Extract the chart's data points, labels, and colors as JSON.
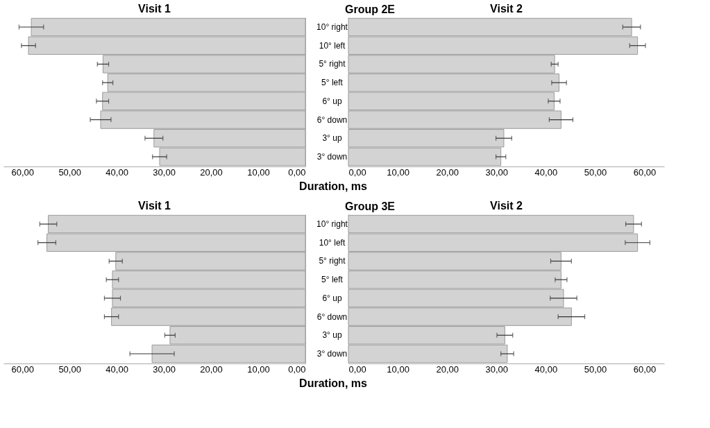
{
  "chart_data": [
    {
      "type": "bar",
      "orientation": "horizontal",
      "title": "Visit 1",
      "annotations": [
        "Group 2E"
      ],
      "xlabel": "Duration, ms",
      "color": "#d3d3d3",
      "categories": [
        "10° right",
        "10° left",
        "5° right",
        "5° left",
        "6° up",
        "6° down",
        "3° up",
        "3° down"
      ],
      "values": [
        58.1,
        58.7,
        42.9,
        41.9,
        43.0,
        43.4,
        32.1,
        30.9
      ],
      "errors": [
        2.6,
        1.5,
        1.2,
        1.1,
        1.3,
        2.2,
        1.9,
        1.5
      ],
      "xlim": [
        64,
        0
      ],
      "xticks": [
        {
          "value": 60,
          "label": "60,00"
        },
        {
          "value": 50,
          "label": "50,00"
        },
        {
          "value": 40,
          "label": "40,00"
        },
        {
          "value": 30,
          "label": "30,00"
        },
        {
          "value": 20,
          "label": "20,00"
        },
        {
          "value": 10,
          "label": "10,00"
        },
        {
          "value": 0,
          "label": "0,00"
        }
      ]
    },
    {
      "type": "bar",
      "orientation": "horizontal",
      "title": "Visit 2",
      "color": "#d3d3d3",
      "tick_labels": "x",
      "categories": [
        "10° right",
        "10° left",
        "5° right",
        "5° left",
        "6° up",
        "6° down",
        "3° up",
        "3° down"
      ],
      "values": [
        57.4,
        58.6,
        41.8,
        42.7,
        41.7,
        43.1,
        31.5,
        30.9
      ],
      "errors": [
        1.8,
        1.6,
        0.7,
        1.5,
        1.2,
        2.4,
        1.6,
        1.0
      ],
      "xlim": [
        0,
        64
      ],
      "xticks": [
        {
          "value": 0,
          "label": "0,00"
        },
        {
          "value": 10,
          "label": "10,00"
        },
        {
          "value": 20,
          "label": "20,00"
        },
        {
          "value": 30,
          "label": "30,00"
        },
        {
          "value": 40,
          "label": "40,00"
        },
        {
          "value": 50,
          "label": "50,00"
        },
        {
          "value": 60,
          "label": "60,00"
        }
      ]
    },
    {
      "type": "bar",
      "orientation": "horizontal",
      "title": "Visit 1",
      "annotations": [
        "Group 3E"
      ],
      "xlabel": "Duration, ms",
      "color": "#d3d3d3",
      "categories": [
        "10° right",
        "10° left",
        "5° right",
        "5° left",
        "6° up",
        "6° down",
        "3° up",
        "3° down"
      ],
      "values": [
        54.5,
        54.8,
        40.2,
        40.9,
        40.9,
        41.1,
        28.7,
        32.5
      ],
      "errors": [
        1.8,
        1.9,
        1.4,
        1.3,
        1.7,
        1.5,
        1.1,
        4.7
      ],
      "xlim": [
        64,
        0
      ],
      "xticks": [
        {
          "value": 60,
          "label": "60,00"
        },
        {
          "value": 50,
          "label": "50,00"
        },
        {
          "value": 40,
          "label": "40,00"
        },
        {
          "value": 30,
          "label": "30,00"
        },
        {
          "value": 20,
          "label": "20,00"
        },
        {
          "value": 10,
          "label": "10,00"
        },
        {
          "value": 0,
          "label": "0,00"
        }
      ]
    },
    {
      "type": "bar",
      "orientation": "horizontal",
      "title": "Visit 2",
      "color": "#d3d3d3",
      "tick_labels": "x",
      "categories": [
        "10° right",
        "10° left",
        "5° right",
        "5° left",
        "6° up",
        "6° down",
        "3° up",
        "3° down"
      ],
      "values": [
        57.8,
        58.6,
        43.1,
        43.1,
        43.6,
        45.2,
        31.7,
        32.2
      ],
      "errors": [
        1.6,
        2.5,
        2.1,
        1.2,
        2.7,
        2.7,
        1.6,
        1.3
      ],
      "xlim": [
        0,
        64
      ],
      "xticks": [
        {
          "value": 0,
          "label": "0,00"
        },
        {
          "value": 10,
          "label": "10,00"
        },
        {
          "value": 20,
          "label": "20,00"
        },
        {
          "value": 30,
          "label": "30,00"
        },
        {
          "value": 40,
          "label": "40,00"
        },
        {
          "value": 50,
          "label": "50,00"
        },
        {
          "value": 60,
          "label": "60,00"
        }
      ]
    }
  ]
}
